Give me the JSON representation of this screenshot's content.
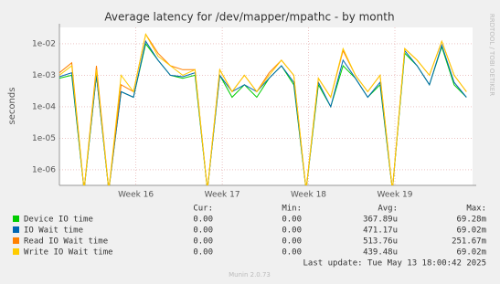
{
  "chart_data": {
    "type": "line",
    "title": "Average latency for /dev/mapper/mpathc - by month",
    "y_label": "seconds",
    "log_scale": true,
    "grid": true,
    "xlim": [
      0,
      33.5
    ],
    "xticks": [
      {
        "value": 6.2,
        "label": "Week 16"
      },
      {
        "value": 13.2,
        "label": "Week 17"
      },
      {
        "value": 20.2,
        "label": "Week 18"
      },
      {
        "value": 27.2,
        "label": "Week 19"
      }
    ],
    "ylim": [
      3.2e-07,
      0.033
    ],
    "yticks": [
      {
        "value": 1e-06,
        "label": "1e-06"
      },
      {
        "value": 1e-05,
        "label": "1e-05"
      },
      {
        "value": 0.0001,
        "label": "1e-04"
      },
      {
        "value": 0.001,
        "label": "1e-03"
      },
      {
        "value": 0.01,
        "label": "1e-02"
      }
    ],
    "x": [
      0,
      1,
      2,
      3,
      4,
      5,
      6,
      7,
      8,
      9,
      10,
      11,
      12,
      13,
      14,
      15,
      16,
      17,
      18,
      19,
      20,
      21,
      22,
      23,
      24,
      25,
      26,
      27,
      28,
      29,
      30,
      31,
      32,
      33
    ],
    "series": [
      {
        "name": "Device IO time",
        "color": "#00cc00",
        "values": [
          0.0008,
          0.001,
          0,
          0.001,
          0,
          0.0003,
          0.0002,
          0.01,
          0.003,
          0.001,
          0.0008,
          0.001,
          0,
          0.001,
          0.0002,
          0.0005,
          0.0002,
          0.0008,
          0.002,
          0.0005,
          0,
          0.0005,
          0.0001,
          0.002,
          0.0008,
          0.0002,
          0.0005,
          0,
          0.005,
          0.002,
          0.0005,
          0.008,
          0.0005,
          0.0002
        ]
      },
      {
        "name": "IO Wait time",
        "color": "#0066b3",
        "values": [
          0.0009,
          0.0012,
          0,
          0.001,
          0,
          0.0003,
          0.0002,
          0.012,
          0.003,
          0.001,
          0.0009,
          0.0012,
          0,
          0.001,
          0.0003,
          0.0005,
          0.0003,
          0.0008,
          0.002,
          0.0006,
          0,
          0.0006,
          0.0001,
          0.003,
          0.0008,
          0.0002,
          0.0006,
          0,
          0.006,
          0.002,
          0.0005,
          0.009,
          0.0006,
          0.0002
        ]
      },
      {
        "name": "Read IO Wait time",
        "color": "#ff8000",
        "values": [
          0.0012,
          0.0025,
          0,
          0.002,
          0,
          0.0005,
          0.0003,
          0.02,
          0.005,
          0.002,
          0.0015,
          0.0015,
          0,
          0.0015,
          0.0003,
          0.001,
          0.0003,
          0.0012,
          0.003,
          0.001,
          0,
          0.0008,
          0.0002,
          0.006,
          0.001,
          0.0003,
          0.001,
          0,
          0.007,
          0.003,
          0.001,
          0.012,
          0.001,
          0.0003
        ]
      },
      {
        "name": "Write IO Wait time",
        "color": "#ffcc00",
        "values": [
          0.001,
          0.002,
          0,
          0.0015,
          0,
          0.001,
          0.0003,
          0.02,
          0.004,
          0.002,
          0.001,
          0.0015,
          0,
          0.0015,
          0.0003,
          0.001,
          0.0003,
          0.001,
          0.003,
          0.001,
          0,
          0.0008,
          0.0002,
          0.007,
          0.001,
          0.0003,
          0.001,
          0,
          0.007,
          0.003,
          0.001,
          0.012,
          0.001,
          0.0003
        ]
      }
    ],
    "legend_table": {
      "headers": [
        "Cur:",
        "Min:",
        "Avg:",
        "Max:"
      ],
      "rows": [
        [
          "0.00",
          "0.00",
          "367.89u",
          "69.28m"
        ],
        [
          "0.00",
          "0.00",
          "471.17u",
          "69.02m"
        ],
        [
          "0.00",
          "0.00",
          "513.76u",
          "251.67m"
        ],
        [
          "0.00",
          "0.00",
          "439.48u",
          "69.02m"
        ]
      ]
    },
    "last_update": "Last update: Tue May 13 18:00:42 2025",
    "generator": "Munin 2.0.73",
    "watermark": "RRDTOOL / TOBI OETIKER"
  }
}
